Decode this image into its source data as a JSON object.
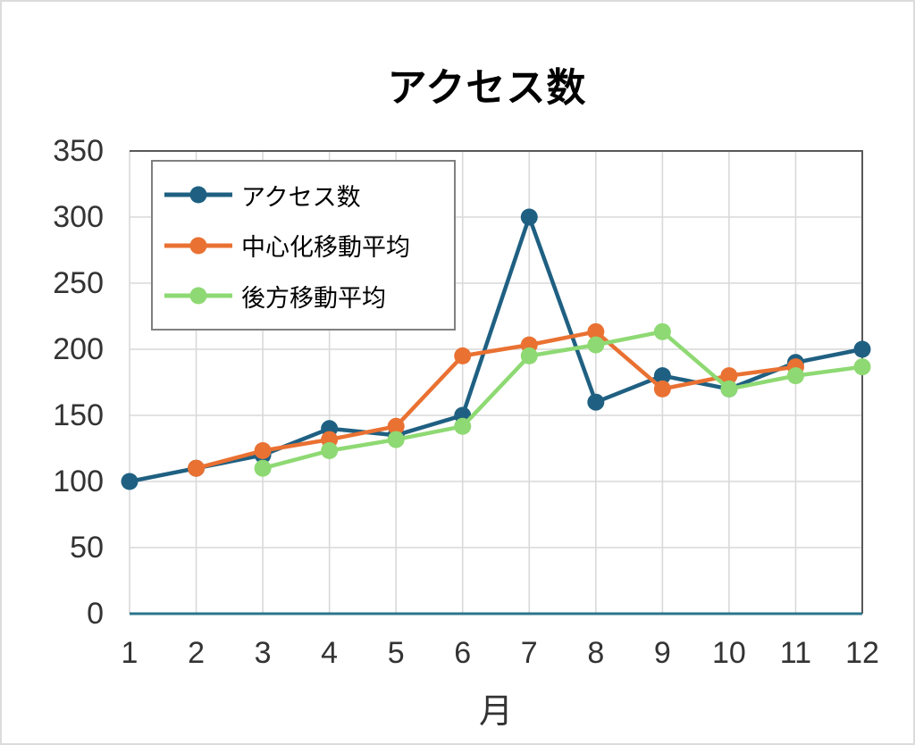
{
  "frame": {
    "background": "#FFFFFF",
    "border_color": "#DCDCDC"
  },
  "chart_data": {
    "type": "line",
    "title": "アクセス数",
    "xlabel": "月",
    "x_labels": [
      "1",
      "2",
      "3",
      "4",
      "5",
      "6",
      "7",
      "8",
      "9",
      "10",
      "11",
      "12"
    ],
    "ylim": [
      0,
      350
    ],
    "ytick_step": 50,
    "yticks": [
      0,
      50,
      100,
      150,
      200,
      250,
      300,
      350
    ],
    "grid": true,
    "legend_position": "top-left-inside",
    "series": [
      {
        "name": "アクセス数",
        "color": "#1F6082",
        "values": [
          100,
          110,
          120,
          140,
          135,
          150,
          300,
          160,
          180,
          170,
          190,
          200
        ]
      },
      {
        "name": "中心化移動平均",
        "color": "#E97132",
        "values": [
          null,
          110,
          123.3,
          131.7,
          141.7,
          195,
          203.3,
          213.3,
          170,
          180,
          186.7,
          null
        ]
      },
      {
        "name": "後方移動平均",
        "color": "#8ED973",
        "values": [
          null,
          null,
          110,
          123.3,
          131.7,
          141.7,
          195,
          203.3,
          213.3,
          170,
          180,
          186.7
        ]
      }
    ],
    "style": {
      "grid_color": "#D9D9D9",
      "axis_line_color": "#2B748C",
      "plot_border_color": "#595959",
      "tick_label_color": "#333333",
      "title_color": "#000000",
      "legend_border_color": "#808080"
    }
  }
}
